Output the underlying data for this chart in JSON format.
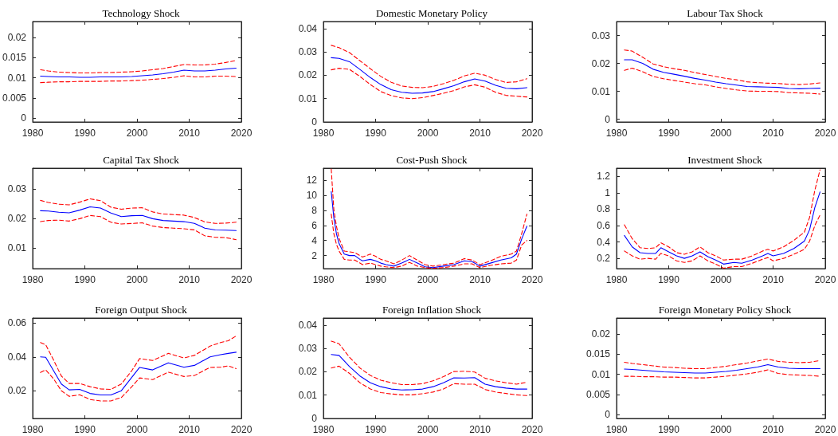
{
  "chart_data": [
    {
      "type": "line",
      "title": "Technology Shock",
      "marker": "none",
      "xlim": [
        1980,
        2020
      ],
      "xticks": [
        1980,
        1990,
        2000,
        2010,
        2020
      ],
      "ylim": [
        -0.001,
        0.024
      ],
      "yticks": [
        0,
        0.005,
        0.01,
        0.015,
        0.02
      ],
      "x": [
        1981.5,
        1983,
        1985,
        1987,
        1989,
        1991,
        1993,
        1995,
        1997,
        1999,
        2001,
        2003,
        2005,
        2007,
        2009,
        2011,
        2013,
        2015,
        2017,
        2019
      ],
      "series": [
        {
          "color": "#0000ff",
          "line_style": "solid",
          "values": [
            0.0104,
            0.0103,
            0.0102,
            0.0102,
            0.0101,
            0.0101,
            0.0102,
            0.0102,
            0.0102,
            0.0103,
            0.0105,
            0.0107,
            0.011,
            0.0114,
            0.0119,
            0.0117,
            0.0117,
            0.0119,
            0.0122,
            0.0124
          ]
        },
        {
          "color": "#ff0000",
          "line_style": "dashed",
          "values": [
            0.012,
            0.0117,
            0.0114,
            0.0113,
            0.0112,
            0.0112,
            0.0113,
            0.0113,
            0.0114,
            0.0115,
            0.0117,
            0.012,
            0.0123,
            0.0128,
            0.0133,
            0.0132,
            0.0132,
            0.0134,
            0.0138,
            0.0143
          ]
        },
        {
          "color": "#ff0000",
          "line_style": "dashed",
          "values": [
            0.0088,
            0.0089,
            0.009,
            0.009,
            0.0091,
            0.0091,
            0.0091,
            0.0092,
            0.0092,
            0.0093,
            0.0094,
            0.0096,
            0.0098,
            0.0101,
            0.0105,
            0.0102,
            0.0102,
            0.0104,
            0.0104,
            0.0103
          ]
        }
      ]
    },
    {
      "type": "line",
      "title": "Domestic Monetary Policy",
      "marker": "none",
      "xlim": [
        1980,
        2020
      ],
      "xticks": [
        1980,
        1990,
        2000,
        2010,
        2020
      ],
      "ylim": [
        0,
        0.043
      ],
      "yticks": [
        0,
        0.01,
        0.02,
        0.03,
        0.04
      ],
      "x": [
        1981.5,
        1983,
        1985,
        1987,
        1989,
        1991,
        1993,
        1995,
        1997,
        1999,
        2001,
        2003,
        2005,
        2007,
        2009,
        2011,
        2013,
        2015,
        2017,
        2019
      ],
      "series": [
        {
          "color": "#0000ff",
          "line_style": "solid",
          "values": [
            0.0275,
            0.0272,
            0.0258,
            0.0225,
            0.019,
            0.016,
            0.0138,
            0.0127,
            0.0123,
            0.0124,
            0.013,
            0.0142,
            0.0155,
            0.0172,
            0.0184,
            0.0175,
            0.0157,
            0.0144,
            0.0142,
            0.0147
          ]
        },
        {
          "color": "#ff0000",
          "line_style": "dashed",
          "values": [
            0.0328,
            0.0318,
            0.0297,
            0.0262,
            0.0228,
            0.0195,
            0.017,
            0.0154,
            0.0148,
            0.0147,
            0.0152,
            0.0164,
            0.0178,
            0.0197,
            0.0209,
            0.02,
            0.0182,
            0.0169,
            0.0172,
            0.0185
          ]
        },
        {
          "color": "#ff0000",
          "line_style": "dashed",
          "values": [
            0.0223,
            0.023,
            0.0225,
            0.0195,
            0.016,
            0.013,
            0.0113,
            0.0103,
            0.01,
            0.0104,
            0.0113,
            0.0123,
            0.0134,
            0.015,
            0.0159,
            0.0149,
            0.0127,
            0.0114,
            0.011,
            0.0107
          ]
        }
      ]
    },
    {
      "type": "line",
      "title": "Labour Tax Shock",
      "marker": "none",
      "xlim": [
        1980,
        2020
      ],
      "xticks": [
        1980,
        1990,
        2000,
        2010,
        2020
      ],
      "ylim": [
        -0.001,
        0.035
      ],
      "yticks": [
        0,
        0.01,
        0.02,
        0.03
      ],
      "x": [
        1981.5,
        1983,
        1985,
        1987,
        1989,
        1991,
        1993,
        1995,
        1997,
        1999,
        2001,
        2003,
        2005,
        2007,
        2009,
        2011,
        2013,
        2015,
        2017,
        2019
      ],
      "series": [
        {
          "color": "#0000ff",
          "line_style": "solid",
          "values": [
            0.0213,
            0.0213,
            0.02,
            0.0179,
            0.0168,
            0.0161,
            0.0154,
            0.0146,
            0.014,
            0.0133,
            0.0127,
            0.0122,
            0.0117,
            0.0116,
            0.0115,
            0.0114,
            0.011,
            0.0109,
            0.011,
            0.0111
          ]
        },
        {
          "color": "#ff0000",
          "line_style": "dashed",
          "values": [
            0.0248,
            0.0244,
            0.0222,
            0.0198,
            0.0188,
            0.0181,
            0.0175,
            0.0167,
            0.016,
            0.0153,
            0.0146,
            0.0141,
            0.0134,
            0.0131,
            0.0129,
            0.0128,
            0.0125,
            0.0124,
            0.0126,
            0.013
          ]
        },
        {
          "color": "#ff0000",
          "line_style": "dashed",
          "values": [
            0.0175,
            0.0183,
            0.017,
            0.0153,
            0.0145,
            0.0139,
            0.0133,
            0.0127,
            0.0123,
            0.0116,
            0.011,
            0.0105,
            0.0101,
            0.01,
            0.01,
            0.0099,
            0.0095,
            0.0094,
            0.0093,
            0.009
          ]
        }
      ]
    },
    {
      "type": "line",
      "title": "Capital Tax Shock",
      "marker": "none",
      "xlim": [
        1980,
        2020
      ],
      "xticks": [
        1980,
        1990,
        2000,
        2010,
        2020
      ],
      "ylim": [
        0.003,
        0.037
      ],
      "yticks": [
        0.01,
        0.02,
        0.03
      ],
      "x": [
        1981.5,
        1983,
        1985,
        1987,
        1989,
        1991,
        1993,
        1995,
        1997,
        1999,
        2001,
        2003,
        2005,
        2007,
        2009,
        2011,
        2013,
        2015,
        2017,
        2019
      ],
      "series": [
        {
          "color": "#0000ff",
          "line_style": "solid",
          "values": [
            0.0226,
            0.0225,
            0.0221,
            0.0219,
            0.0228,
            0.0239,
            0.0235,
            0.0218,
            0.0206,
            0.0209,
            0.021,
            0.0199,
            0.0193,
            0.0191,
            0.0189,
            0.0183,
            0.0167,
            0.0161,
            0.016,
            0.0159
          ]
        },
        {
          "color": "#ff0000",
          "line_style": "dashed",
          "values": [
            0.0261,
            0.0254,
            0.0248,
            0.0246,
            0.0255,
            0.0266,
            0.026,
            0.0238,
            0.0231,
            0.0235,
            0.0236,
            0.0222,
            0.0215,
            0.0213,
            0.0211,
            0.0203,
            0.0188,
            0.0183,
            0.0184,
            0.0187
          ]
        },
        {
          "color": "#ff0000",
          "line_style": "dashed",
          "values": [
            0.0189,
            0.0193,
            0.0194,
            0.0191,
            0.0199,
            0.021,
            0.0206,
            0.0187,
            0.0181,
            0.0183,
            0.0185,
            0.0174,
            0.0169,
            0.0167,
            0.0165,
            0.0161,
            0.0141,
            0.0136,
            0.0135,
            0.0128
          ]
        }
      ]
    },
    {
      "type": "line",
      "title": "Cost-Push Shock",
      "marker": "none",
      "xlim": [
        1980,
        2020
      ],
      "xticks": [
        1980,
        1990,
        2000,
        2010,
        2020
      ],
      "ylim": [
        0.27,
        13.6
      ],
      "yticks": [
        2,
        4,
        6,
        8,
        10,
        12
      ],
      "x": [
        1981.5,
        1982,
        1982.5,
        1983,
        1984,
        1985,
        1986,
        1987,
        1987.5,
        1989,
        1990,
        1991,
        1992,
        1993.5,
        1995,
        1996.5,
        1998,
        1999.5,
        2001,
        2003,
        2005,
        2007,
        2008.5,
        2010,
        2012,
        2014,
        2016,
        2017,
        2018,
        2019
      ],
      "series": [
        {
          "color": "#0000ff",
          "line_style": "solid",
          "values": [
            10.5,
            7.0,
            4.9,
            3.6,
            2.2,
            2.0,
            2.0,
            1.5,
            1.3,
            1.5,
            1.3,
            1.0,
            0.8,
            0.6,
            1.0,
            1.5,
            1.0,
            0.5,
            0.4,
            0.6,
            0.8,
            1.3,
            1.2,
            0.6,
            1.0,
            1.4,
            1.7,
            2.2,
            4.2,
            5.9
          ]
        },
        {
          "color": "#ff0000",
          "line_style": "dashed",
          "values": [
            13.5,
            8.1,
            5.9,
            4.3,
            2.6,
            2.5,
            2.4,
            2.0,
            1.8,
            2.2,
            1.9,
            1.5,
            1.3,
            0.9,
            1.4,
            2.0,
            1.4,
            0.8,
            0.6,
            0.8,
            1.0,
            1.6,
            1.4,
            0.8,
            1.3,
            1.9,
            2.2,
            2.6,
            4.9,
            7.5
          ]
        },
        {
          "color": "#ff0000",
          "line_style": "dashed",
          "values": [
            7.5,
            4.9,
            3.5,
            2.6,
            1.5,
            1.4,
            1.4,
            1.0,
            0.8,
            1.0,
            0.8,
            0.6,
            0.5,
            0.4,
            0.6,
            1.1,
            0.6,
            0.4,
            0.3,
            0.4,
            0.6,
            0.9,
            0.9,
            0.4,
            0.7,
            0.9,
            1.0,
            1.4,
            3.4,
            4.0
          ]
        }
      ]
    },
    {
      "type": "line",
      "title": "Investment Shock",
      "marker": "none",
      "xlim": [
        1980,
        2020
      ],
      "xticks": [
        1980,
        1990,
        2000,
        2010,
        2020
      ],
      "ylim": [
        0.075,
        1.3
      ],
      "yticks": [
        0.2,
        0.4,
        0.6,
        0.8,
        1,
        1.2
      ],
      "x": [
        1981.5,
        1983,
        1984.5,
        1986,
        1987.5,
        1988.5,
        1990,
        1991.5,
        1993,
        1994.5,
        1996,
        1997.5,
        1999,
        2000.5,
        2002.5,
        2004,
        2006,
        2008,
        2009,
        2010,
        2012,
        2014,
        2016,
        2017,
        2018,
        2019
      ],
      "series": [
        {
          "color": "#0000ff",
          "line_style": "solid",
          "values": [
            0.48,
            0.34,
            0.27,
            0.26,
            0.26,
            0.33,
            0.28,
            0.23,
            0.2,
            0.23,
            0.28,
            0.22,
            0.18,
            0.13,
            0.15,
            0.14,
            0.18,
            0.23,
            0.26,
            0.23,
            0.26,
            0.32,
            0.41,
            0.55,
            0.82,
            1.01
          ]
        },
        {
          "color": "#ff0000",
          "line_style": "dashed",
          "values": [
            0.61,
            0.44,
            0.33,
            0.32,
            0.33,
            0.39,
            0.34,
            0.27,
            0.25,
            0.28,
            0.34,
            0.27,
            0.23,
            0.18,
            0.19,
            0.19,
            0.23,
            0.29,
            0.31,
            0.29,
            0.34,
            0.42,
            0.52,
            0.7,
            1.03,
            1.28
          ]
        },
        {
          "color": "#ff0000",
          "line_style": "dashed",
          "values": [
            0.29,
            0.23,
            0.19,
            0.2,
            0.19,
            0.26,
            0.23,
            0.17,
            0.15,
            0.17,
            0.23,
            0.17,
            0.13,
            0.08,
            0.1,
            0.1,
            0.14,
            0.19,
            0.21,
            0.17,
            0.2,
            0.25,
            0.31,
            0.41,
            0.6,
            0.73
          ]
        }
      ]
    },
    {
      "type": "line",
      "title": "Foreign Output Shock",
      "marker": "none",
      "xlim": [
        1980,
        2020
      ],
      "xticks": [
        1980,
        1990,
        2000,
        2010,
        2020
      ],
      "ylim": [
        0.0036,
        0.063
      ],
      "yticks": [
        0.02,
        0.04,
        0.06
      ],
      "x": [
        1981.5,
        1982.5,
        1984,
        1985.5,
        1987,
        1989,
        1991,
        1993,
        1995,
        1997,
        1999,
        2000.5,
        2003,
        2006,
        2009,
        2011,
        2014,
        2016,
        2017.5,
        2019
      ],
      "series": [
        {
          "color": "#0000ff",
          "line_style": "solid",
          "values": [
            0.04,
            0.0398,
            0.0319,
            0.024,
            0.0205,
            0.0208,
            0.0184,
            0.0175,
            0.0175,
            0.02,
            0.0279,
            0.0338,
            0.0323,
            0.0365,
            0.0339,
            0.035,
            0.04,
            0.0413,
            0.0421,
            0.0428
          ]
        },
        {
          "color": "#ff0000",
          "line_style": "dashed",
          "values": [
            0.0485,
            0.0472,
            0.0382,
            0.0287,
            0.0243,
            0.0243,
            0.0224,
            0.0211,
            0.0208,
            0.024,
            0.0319,
            0.039,
            0.0379,
            0.0421,
            0.0394,
            0.0409,
            0.0464,
            0.0485,
            0.0496,
            0.0524
          ]
        },
        {
          "color": "#ff0000",
          "line_style": "dashed",
          "values": [
            0.0308,
            0.0323,
            0.0271,
            0.02,
            0.0167,
            0.0176,
            0.0148,
            0.014,
            0.014,
            0.016,
            0.0224,
            0.0276,
            0.0266,
            0.031,
            0.0284,
            0.029,
            0.0338,
            0.0339,
            0.0347,
            0.0331
          ]
        }
      ]
    },
    {
      "type": "line",
      "title": "Foreign Inflation Shock",
      "marker": "none",
      "xlim": [
        1980,
        2020
      ],
      "xticks": [
        1980,
        1990,
        2000,
        2010,
        2020
      ],
      "ylim": [
        0,
        0.043
      ],
      "yticks": [
        0,
        0.01,
        0.02,
        0.03,
        0.04
      ],
      "x": [
        1981.5,
        1983,
        1985,
        1987,
        1989,
        1991,
        1993,
        1995,
        1997,
        1999,
        2001,
        2003,
        2005,
        2007,
        2009,
        2011,
        2013,
        2015,
        2017,
        2019
      ],
      "series": [
        {
          "color": "#0000ff",
          "line_style": "solid",
          "values": [
            0.0274,
            0.027,
            0.0222,
            0.0182,
            0.0153,
            0.0136,
            0.0126,
            0.0122,
            0.0123,
            0.0126,
            0.0136,
            0.0153,
            0.0174,
            0.0173,
            0.0175,
            0.0147,
            0.0136,
            0.013,
            0.0126,
            0.0126
          ]
        },
        {
          "color": "#ff0000",
          "line_style": "dashed",
          "values": [
            0.0331,
            0.032,
            0.0262,
            0.0216,
            0.0184,
            0.0164,
            0.0153,
            0.0145,
            0.0145,
            0.0149,
            0.0161,
            0.0179,
            0.0201,
            0.0202,
            0.0199,
            0.0172,
            0.0161,
            0.0153,
            0.0147,
            0.0155
          ]
        },
        {
          "color": "#ff0000",
          "line_style": "dashed",
          "values": [
            0.0216,
            0.0224,
            0.0193,
            0.0153,
            0.0126,
            0.0111,
            0.0105,
            0.0101,
            0.0101,
            0.0106,
            0.0113,
            0.0126,
            0.0149,
            0.0147,
            0.0147,
            0.0124,
            0.0113,
            0.0107,
            0.0101,
            0.0098
          ]
        }
      ]
    },
    {
      "type": "line",
      "title": "Foreign Monetary Policy Shock",
      "marker": "none",
      "xlim": [
        1980,
        2020
      ],
      "xticks": [
        1980,
        1990,
        2000,
        2010,
        2020
      ],
      "ylim": [
        -0.001,
        0.024
      ],
      "yticks": [
        0,
        0.005,
        0.01,
        0.015,
        0.02
      ],
      "x": [
        1981.5,
        1983,
        1985,
        1987,
        1989,
        1991,
        1993,
        1995,
        1997,
        1999,
        2001,
        2003,
        2005,
        2007,
        2009,
        2011,
        2013,
        2015,
        2017,
        2019
      ],
      "series": [
        {
          "color": "#0000ff",
          "line_style": "solid",
          "values": [
            0.0113,
            0.0112,
            0.011,
            0.0108,
            0.0106,
            0.0105,
            0.0104,
            0.0103,
            0.0103,
            0.0105,
            0.0107,
            0.011,
            0.0114,
            0.0118,
            0.0124,
            0.0118,
            0.0115,
            0.0114,
            0.0114,
            0.0114
          ]
        },
        {
          "color": "#ff0000",
          "line_style": "dashed",
          "values": [
            0.013,
            0.0127,
            0.0124,
            0.0121,
            0.0118,
            0.0117,
            0.0115,
            0.0114,
            0.0114,
            0.0117,
            0.012,
            0.0124,
            0.0128,
            0.0133,
            0.0138,
            0.0132,
            0.013,
            0.0129,
            0.013,
            0.0134
          ]
        },
        {
          "color": "#ff0000",
          "line_style": "dashed",
          "values": [
            0.0095,
            0.0095,
            0.0094,
            0.0094,
            0.0093,
            0.0093,
            0.0092,
            0.0091,
            0.0091,
            0.0093,
            0.0095,
            0.0098,
            0.0101,
            0.0105,
            0.0111,
            0.0102,
            0.0099,
            0.0098,
            0.0097,
            0.0095
          ]
        }
      ]
    }
  ]
}
